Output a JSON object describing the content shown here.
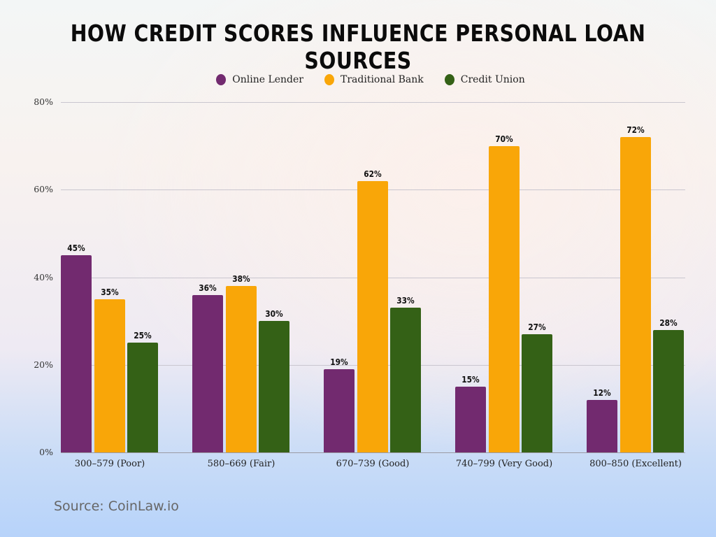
{
  "chart_data": {
    "type": "bar",
    "title": "How Credit Scores Influence Personal Loan Sources",
    "xlabel": "",
    "ylabel": "",
    "categories": [
      "300–579 (Poor)",
      "580–669 (Fair)",
      "670–739 (Good)",
      "740–799 (Very Good)",
      "800–850 (Excellent)"
    ],
    "series": [
      {
        "name": "Online Lender",
        "color": "#722a6f",
        "values": [
          45,
          36,
          19,
          15,
          12
        ]
      },
      {
        "name": "Traditional Bank",
        "color": "#f9a608",
        "values": [
          35,
          38,
          62,
          70,
          72
        ]
      },
      {
        "name": "Credit Union",
        "color": "#346116",
        "values": [
          25,
          30,
          33,
          27,
          28
        ]
      }
    ],
    "value_labels": [
      [
        "45%",
        "36%",
        "19%",
        "15%",
        "12%"
      ],
      [
        "35%",
        "38%",
        "62%",
        "70%",
        "72%"
      ],
      [
        "25%",
        "30%",
        "33%",
        "27%",
        "28%"
      ]
    ],
    "ylim": [
      0,
      80
    ],
    "yticks": [
      "0%",
      "20%",
      "40%",
      "60%",
      "80%"
    ],
    "grid": true,
    "legend_position": "top"
  },
  "title": "How Credit Scores Influence Personal Loan Sources",
  "legend": [
    {
      "label": "Online Lender",
      "color": "#722a6f"
    },
    {
      "label": "Traditional Bank",
      "color": "#f9a608"
    },
    {
      "label": "Credit Union",
      "color": "#346116"
    }
  ],
  "source": "Source: CoinLaw.io"
}
